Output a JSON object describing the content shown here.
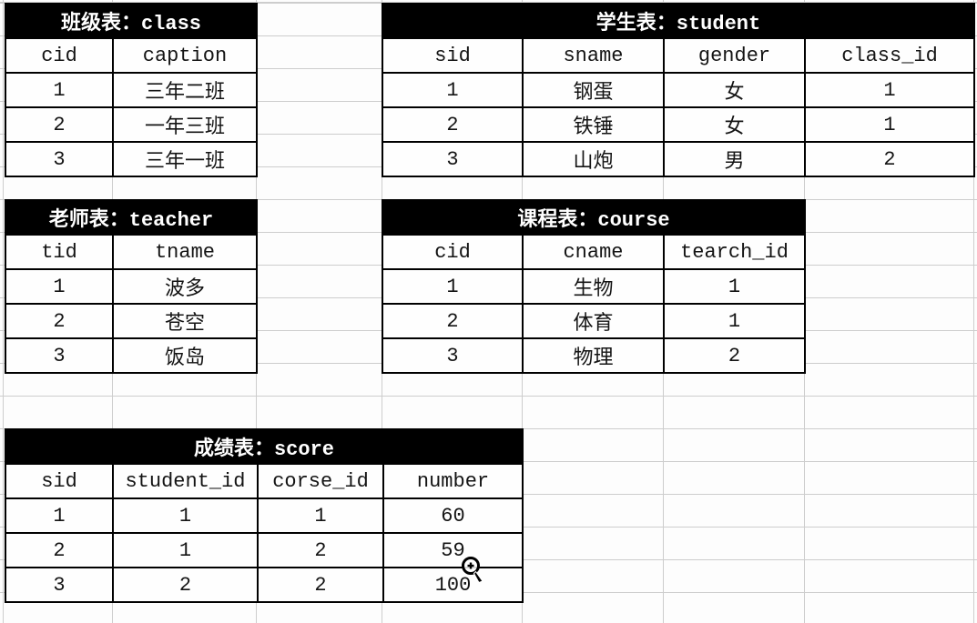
{
  "sheet": {
    "background_color": "#fdfdfd",
    "gridline_color": "#cdcdcd",
    "table_border_color": "#000000",
    "title_bar_color": "#000000",
    "title_text_color": "#ffffff",
    "cell_text_color": "#141414"
  },
  "tables": [
    {
      "id": "class",
      "title": "班级表：class",
      "columns": [
        "cid",
        "caption"
      ],
      "rows": [
        [
          "1",
          "三年二班"
        ],
        [
          "2",
          "一年三班"
        ],
        [
          "3",
          "三年一班"
        ]
      ]
    },
    {
      "id": "student",
      "title": "学生表：student",
      "columns": [
        "sid",
        "sname",
        "gender",
        "class_id"
      ],
      "rows": [
        [
          "1",
          "钢蛋",
          "女",
          "1"
        ],
        [
          "2",
          "铁锤",
          "女",
          "1"
        ],
        [
          "3",
          "山炮",
          "男",
          "2"
        ]
      ]
    },
    {
      "id": "teacher",
      "title": "老师表：teacher",
      "columns": [
        "tid",
        "tname"
      ],
      "rows": [
        [
          "1",
          "波多"
        ],
        [
          "2",
          "苍空"
        ],
        [
          "3",
          "饭岛"
        ]
      ]
    },
    {
      "id": "course",
      "title": "课程表：course",
      "columns": [
        "cid",
        "cname",
        "tearch_id"
      ],
      "rows": [
        [
          "1",
          "生物",
          "1"
        ],
        [
          "2",
          "体育",
          "1"
        ],
        [
          "3",
          "物理",
          "2"
        ]
      ]
    },
    {
      "id": "score",
      "title": "成绩表：score",
      "columns": [
        "sid",
        "student_id",
        "corse_id",
        "number"
      ],
      "rows": [
        [
          "1",
          "1",
          "1",
          "60"
        ],
        [
          "2",
          "1",
          "2",
          "59"
        ],
        [
          "3",
          "2",
          "2",
          "100"
        ]
      ]
    }
  ],
  "cursor": {
    "icon": "zoom-in-magnifier-cursor"
  }
}
